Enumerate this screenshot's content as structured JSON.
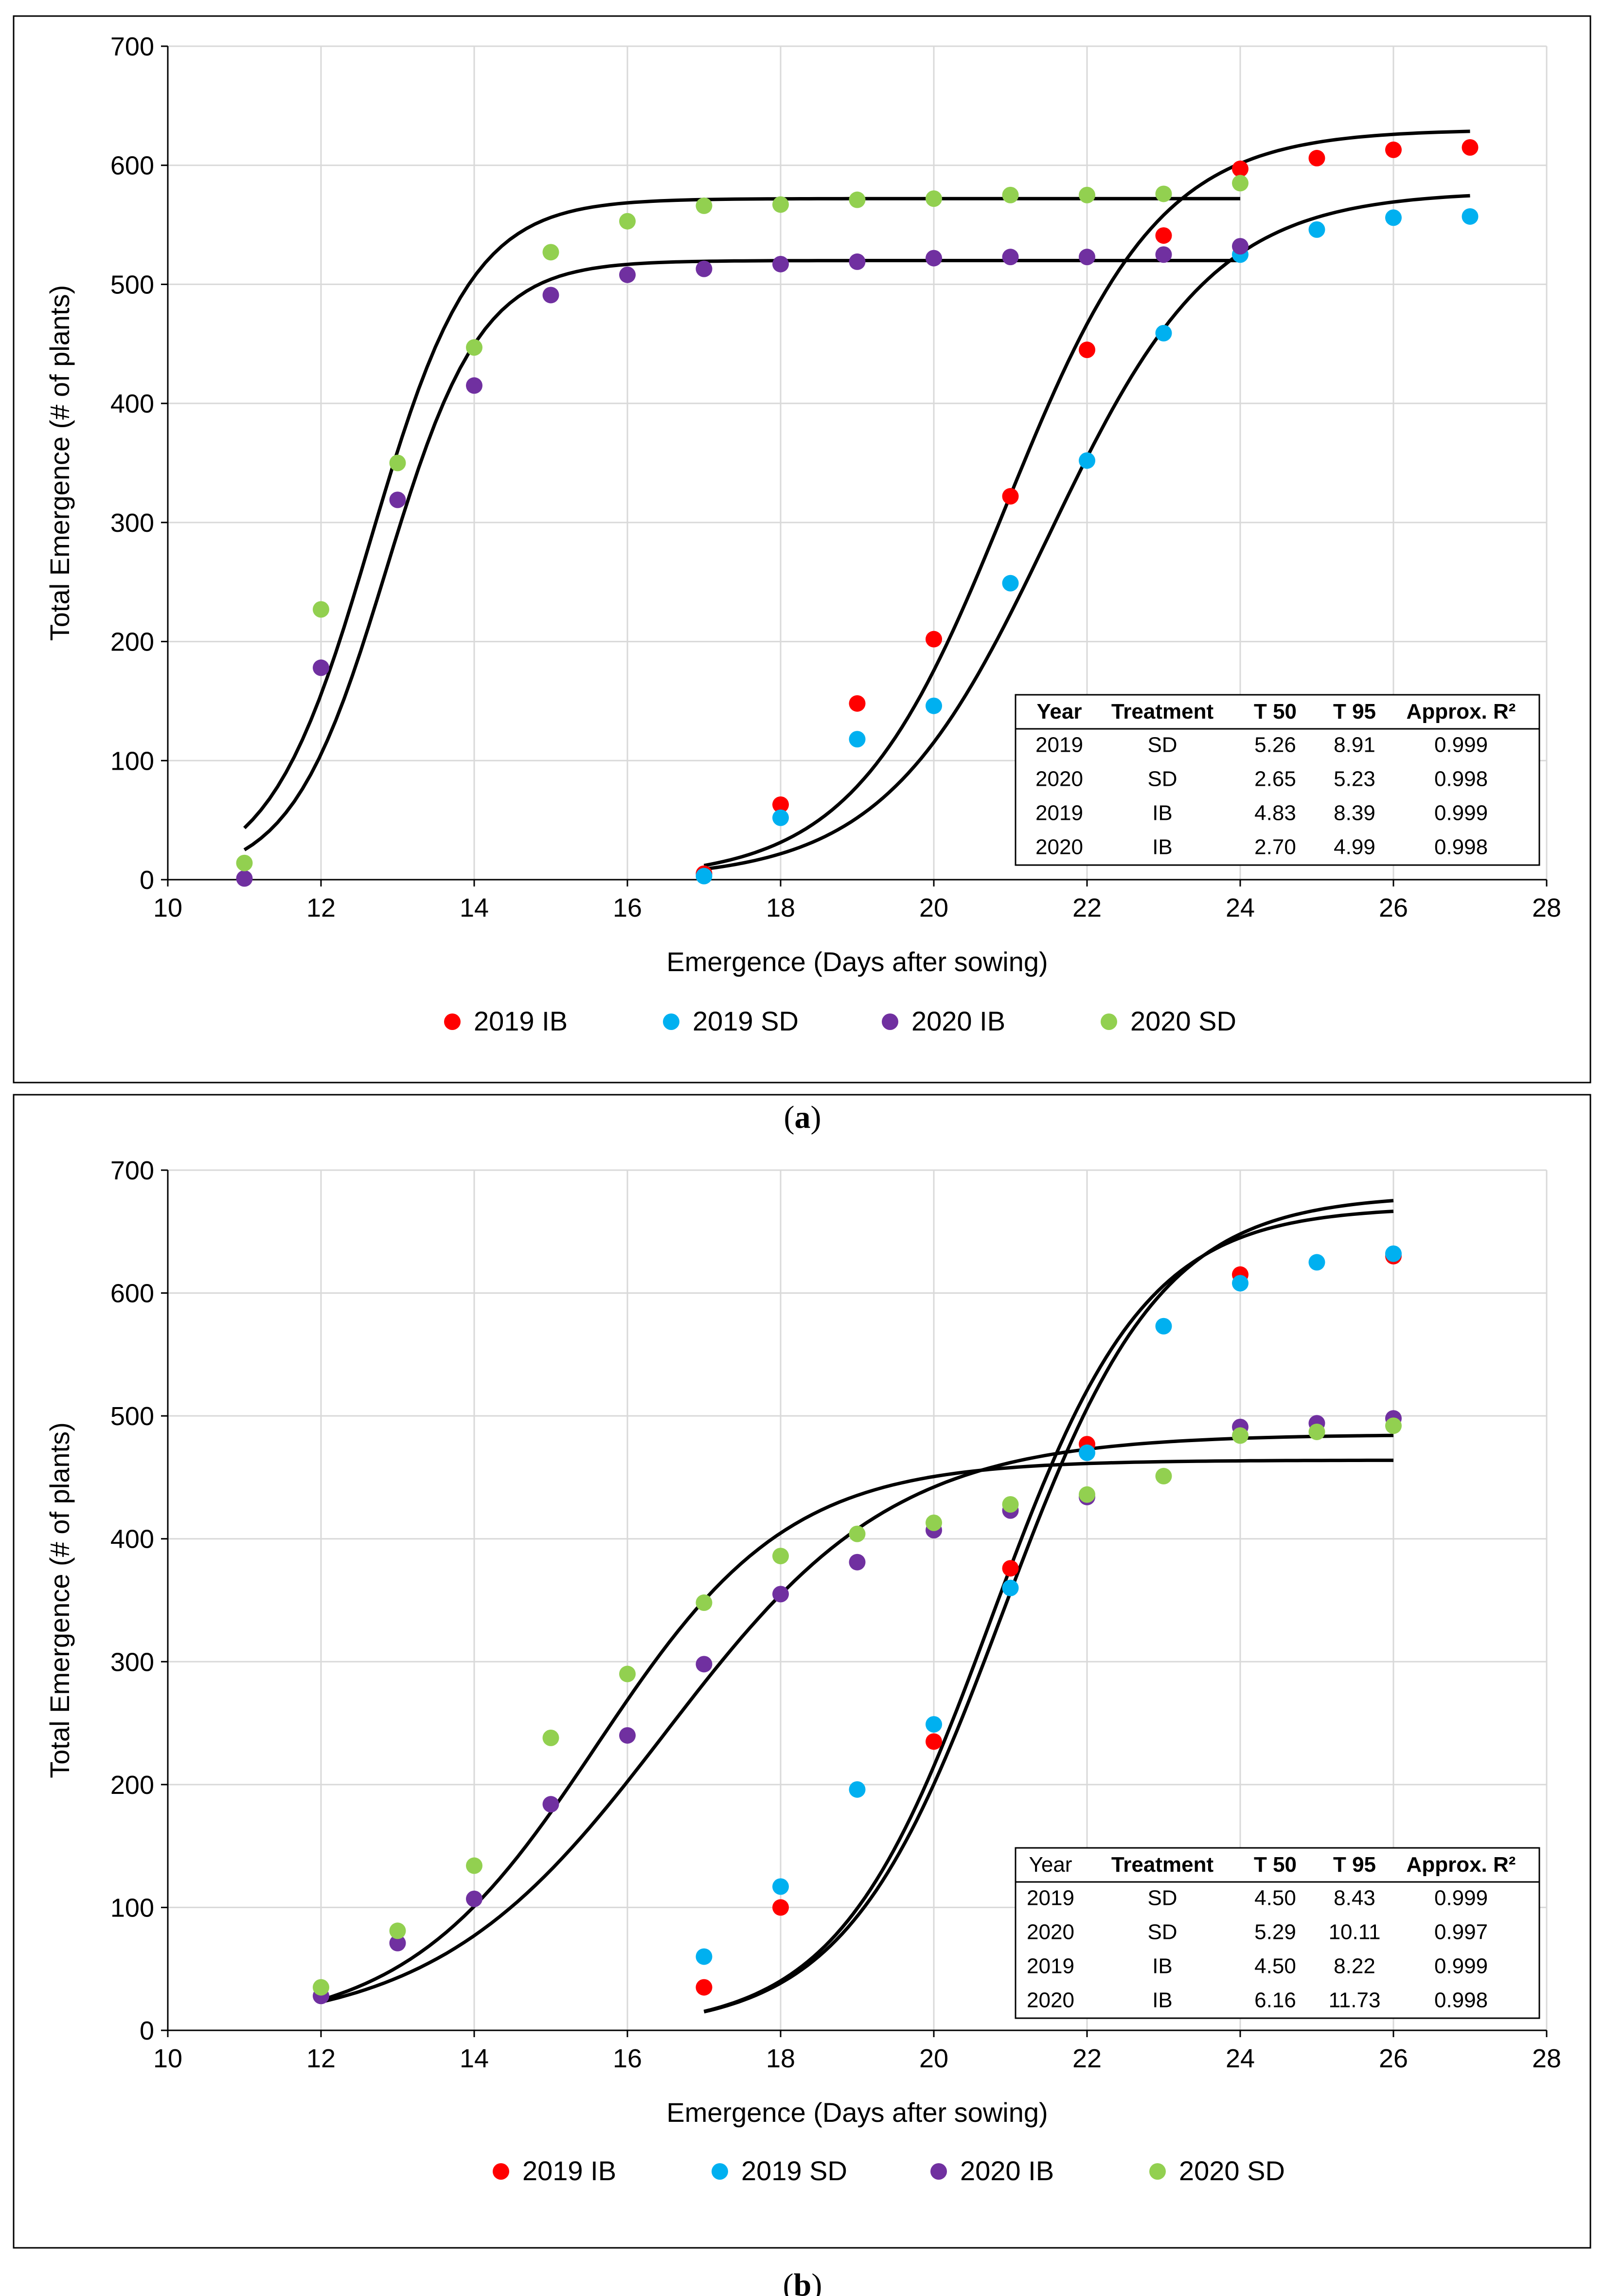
{
  "chart_data": [
    {
      "type": "scatter",
      "panel_label": "(a)",
      "xlabel": "Emergence (Days after sowing)",
      "ylabel": "Total Emergence (# of plants)",
      "xlim": [
        10,
        28
      ],
      "ylim": [
        0,
        700
      ],
      "xticks": [
        10,
        12,
        14,
        16,
        18,
        20,
        22,
        24,
        26,
        28
      ],
      "yticks": [
        0,
        100,
        200,
        300,
        400,
        500,
        600,
        700
      ],
      "grid": true,
      "legend": {
        "position": "bottom",
        "entries": [
          "2019 IB",
          "2019 SD",
          "2020 IB",
          "2020 SD"
        ]
      },
      "series": [
        {
          "name": "2019 IB",
          "color": "#ff0000",
          "x": [
            17,
            18,
            19,
            20,
            21,
            22,
            23,
            24,
            25,
            26,
            27
          ],
          "y": [
            5,
            63,
            148,
            202,
            322,
            445,
            541,
            597,
            606,
            613,
            615
          ]
        },
        {
          "name": "2019 SD",
          "color": "#00b0f0",
          "x": [
            17,
            18,
            19,
            20,
            21,
            22,
            23,
            24,
            25,
            26,
            27
          ],
          "y": [
            3,
            52,
            118,
            146,
            249,
            352,
            459,
            525,
            546,
            556,
            557
          ]
        },
        {
          "name": "2020 IB",
          "color": "#7030a0",
          "x": [
            11,
            12,
            13,
            14,
            15,
            16,
            17,
            18,
            19,
            20,
            21,
            22,
            23,
            24
          ],
          "y": [
            1,
            178,
            319,
            415,
            491,
            508,
            513,
            517,
            519,
            522,
            523,
            523,
            525,
            532
          ]
        },
        {
          "name": "2020 SD",
          "color": "#92d050",
          "x": [
            11,
            12,
            13,
            14,
            15,
            16,
            17,
            18,
            19,
            20,
            21,
            22,
            23,
            24
          ],
          "y": [
            14,
            227,
            350,
            447,
            527,
            553,
            566,
            567,
            571,
            572,
            575,
            575,
            576,
            585
          ]
        }
      ],
      "fits": [
        {
          "series": "2019 IB",
          "asym": 630,
          "mid": 20.95,
          "scale": 1.0,
          "range": [
            17,
            27
          ]
        },
        {
          "series": "2019 SD",
          "asym": 578,
          "mid": 21.5,
          "scale": 1.08,
          "range": [
            17,
            27
          ]
        },
        {
          "series": "2020 IB",
          "asym": 520,
          "mid": 12.85,
          "scale": 0.62,
          "range": [
            11,
            24
          ]
        },
        {
          "series": "2020 SD",
          "asym": 572,
          "mid": 12.65,
          "scale": 0.66,
          "range": [
            11,
            24
          ]
        }
      ],
      "table": {
        "headers": [
          "Year",
          "Treatment",
          "T 50",
          "T 95",
          "Approx. R²"
        ],
        "rows": [
          [
            "2019",
            "SD",
            "5.26",
            "8.91",
            "0.999"
          ],
          [
            "2020",
            "SD",
            "2.65",
            "5.23",
            "0.998"
          ],
          [
            "2019",
            "IB",
            "4.83",
            "8.39",
            "0.999"
          ],
          [
            "2020",
            "IB",
            "2.70",
            "4.99",
            "0.998"
          ]
        ]
      }
    },
    {
      "type": "scatter",
      "panel_label": "(b)",
      "xlabel": "Emergence (Days after sowing)",
      "ylabel": "Total Emergence (# of plants)",
      "xlim": [
        10,
        28
      ],
      "ylim": [
        0,
        700
      ],
      "xticks": [
        10,
        12,
        14,
        16,
        18,
        20,
        22,
        24,
        26,
        28
      ],
      "yticks": [
        0,
        100,
        200,
        300,
        400,
        500,
        600,
        700
      ],
      "grid": true,
      "legend": {
        "position": "bottom",
        "entries": [
          "2019 IB",
          "2019 SD",
          "2020 IB",
          "2020 SD"
        ]
      },
      "series": [
        {
          "name": "2019 IB",
          "color": "#ff0000",
          "x": [
            17,
            18,
            20,
            21,
            22,
            24,
            26
          ],
          "y": [
            35,
            100,
            235,
            376,
            477,
            615,
            630
          ]
        },
        {
          "name": "2019 SD",
          "color": "#00b0f0",
          "x": [
            17,
            18,
            19,
            20,
            21,
            22,
            23,
            24,
            25,
            26
          ],
          "y": [
            60,
            117,
            196,
            249,
            360,
            470,
            573,
            608,
            625,
            632
          ]
        },
        {
          "name": "2020 IB",
          "color": "#7030a0",
          "x": [
            12,
            13,
            14,
            15,
            16,
            17,
            18,
            19,
            20,
            21,
            22,
            24,
            25,
            26
          ],
          "y": [
            28,
            71,
            107,
            184,
            240,
            298,
            355,
            381,
            407,
            423,
            434,
            491,
            494,
            498
          ]
        },
        {
          "name": "2020 SD",
          "color": "#92d050",
          "x": [
            12,
            13,
            14,
            15,
            16,
            17,
            18,
            19,
            20,
            21,
            22,
            23,
            24,
            25,
            26
          ],
          "y": [
            35,
            81,
            134,
            238,
            290,
            348,
            386,
            404,
            413,
            428,
            436,
            451,
            484,
            487,
            492
          ]
        }
      ],
      "fits": [
        {
          "series": "2019 IB",
          "asym": 680,
          "mid": 20.9,
          "scale": 1.03,
          "range": [
            17,
            26
          ]
        },
        {
          "series": "2019 SD",
          "asym": 670,
          "mid": 20.75,
          "scale": 1.0,
          "range": [
            17,
            26
          ]
        },
        {
          "series": "2020 IB",
          "asym": 485,
          "mid": 16.5,
          "scale": 1.5,
          "range": [
            12,
            26
          ]
        },
        {
          "series": "2020 SD",
          "asym": 464,
          "mid": 15.6,
          "scale": 1.25,
          "range": [
            12,
            26
          ]
        }
      ],
      "table": {
        "headers": [
          "Year",
          "Treatment",
          "T 50",
          "T 95",
          "Approx. R²"
        ],
        "rows": [
          [
            "2019",
            "SD",
            "4.50",
            "8.43",
            "0.999"
          ],
          [
            "2020",
            "SD",
            "5.29",
            "10.11",
            "0.997"
          ],
          [
            "2019",
            "IB",
            "4.50",
            "8.22",
            "0.999"
          ],
          [
            "2020",
            "IB",
            "6.16",
            "11.73",
            "0.998"
          ]
        ]
      }
    }
  ]
}
